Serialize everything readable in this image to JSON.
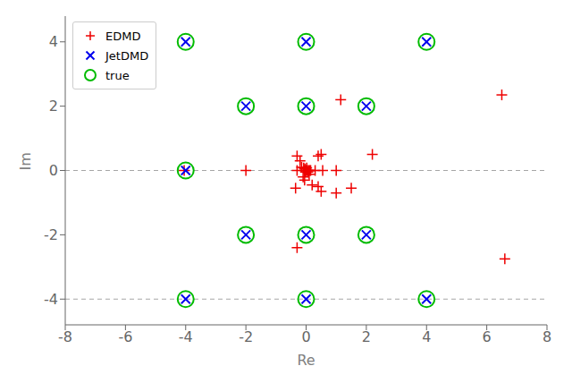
{
  "chart_data": {
    "type": "scatter",
    "xlabel": "Re",
    "ylabel": "Im",
    "xlim": [
      -8,
      8
    ],
    "ylim": [
      -4.8,
      4.8
    ],
    "xticks": [
      -8,
      -6,
      -4,
      -2,
      0,
      2,
      4,
      6,
      8
    ],
    "yticks": [
      -4,
      -2,
      0,
      2,
      4
    ],
    "grid": false,
    "legend": "upper left",
    "hlines": [
      0,
      -4
    ],
    "series": [
      {
        "name": "EDMD",
        "color": "#ee0000",
        "marker": "plus",
        "x": [
          -4.05,
          -2.0,
          -0.05,
          -0.3,
          -0.2,
          -0.15,
          -0.1,
          -0.08,
          -0.05,
          -0.04,
          -0.03,
          -0.02,
          0.0,
          0.02,
          0.04,
          0.06,
          0.08,
          0.1,
          0.12,
          0.15,
          0.2,
          -0.3,
          0.3,
          0.5,
          0.4,
          0.55,
          1.0,
          1.15,
          2.2,
          0.5,
          1.0,
          -0.35,
          0.4,
          1.5,
          6.5,
          6.6,
          -0.3
        ],
        "values": [
          0.0,
          0.0,
          0.0,
          0.45,
          0.3,
          0.1,
          -0.2,
          0.08,
          -0.3,
          0.05,
          0.0,
          -0.05,
          0.0,
          0.08,
          0.0,
          -0.05,
          0.0,
          -0.12,
          0.0,
          0.0,
          -0.45,
          0.0,
          0.0,
          0.5,
          0.45,
          0.0,
          0.0,
          2.2,
          0.5,
          -0.65,
          -0.7,
          -0.55,
          -0.5,
          -0.55,
          2.35,
          -2.75,
          -2.4
        ]
      },
      {
        "name": "JetDMD",
        "color": "#0000ee",
        "marker": "x",
        "x": [
          -4,
          -4,
          -2,
          0,
          0,
          2,
          4,
          -4,
          0,
          4,
          -2,
          0,
          2
        ],
        "values": [
          0,
          4,
          2,
          4,
          2,
          2,
          4,
          -4,
          -4,
          -4,
          -2,
          -2,
          -2
        ]
      },
      {
        "name": "true",
        "color": "#00bb00",
        "marker": "circle",
        "x": [
          -4,
          -4,
          -2,
          0,
          0,
          2,
          4,
          -4,
          0,
          4,
          -2,
          0,
          2
        ],
        "values": [
          0,
          4,
          2,
          4,
          2,
          2,
          4,
          -4,
          -4,
          -4,
          -2,
          -2,
          -2
        ]
      }
    ]
  }
}
